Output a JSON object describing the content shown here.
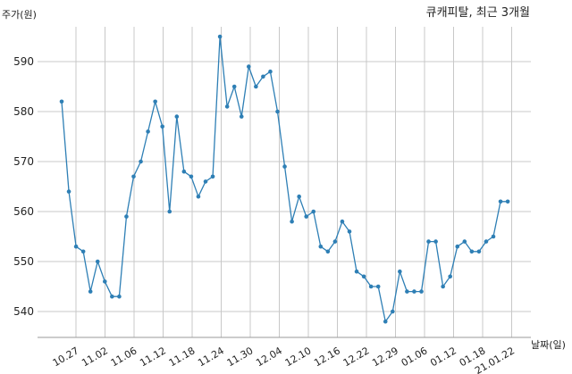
{
  "chart_data": {
    "type": "line",
    "title": "큐캐피탈, 최근 3개월",
    "xlabel": "날짜(일)",
    "ylabel": "주가(원)",
    "ylim": [
      535,
      596
    ],
    "yticks": [
      540,
      550,
      560,
      570,
      580,
      590
    ],
    "grid": true,
    "x_tick_labels": [
      "10.27",
      "11.02",
      "11.06",
      "11.12",
      "11.18",
      "11.24",
      "11.30",
      "12.04",
      "12.10",
      "12.16",
      "12.22",
      "12.29",
      "01.06",
      "01.12",
      "01.18",
      "21.01.22"
    ],
    "series": [
      {
        "color": "#2e7fb5",
        "values": [
          582,
          564,
          553,
          552,
          544,
          550,
          546,
          543,
          543,
          559,
          567,
          570,
          576,
          582,
          577,
          560,
          579,
          568,
          567,
          563,
          566,
          567,
          595,
          581,
          585,
          579,
          589,
          585,
          587,
          588,
          580,
          569,
          558,
          563,
          559,
          560,
          553,
          552,
          554,
          558,
          556,
          548,
          547,
          545,
          545,
          538,
          540,
          548,
          544,
          544,
          544,
          554,
          554,
          545,
          547,
          553,
          554,
          552,
          552,
          554,
          555,
          562,
          562
        ]
      }
    ]
  }
}
